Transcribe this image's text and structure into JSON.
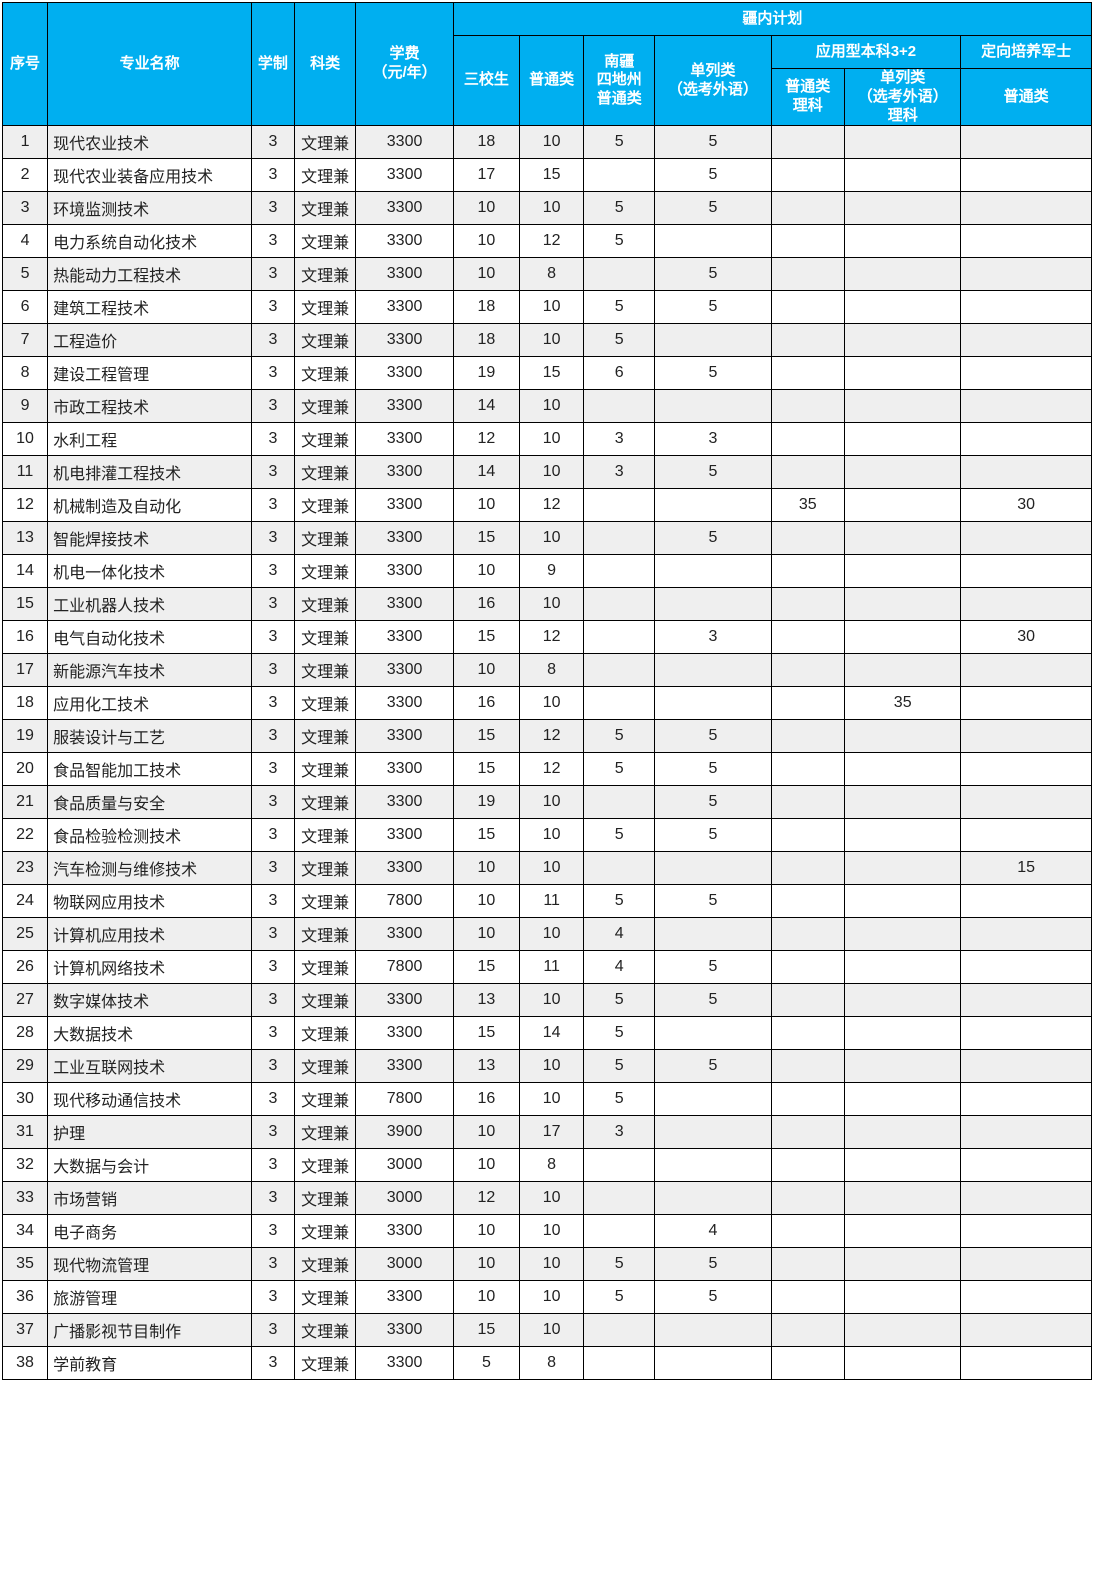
{
  "colors": {
    "header_bg": "#00aff0",
    "header_fg": "#ffffff",
    "row_odd_bg": "#efefef",
    "row_even_bg": "#ffffff",
    "border": "#000000"
  },
  "header": {
    "idx": "序号",
    "name": "专业名称",
    "dur": "学制",
    "cat": "科类",
    "fee_l1": "学费",
    "fee_l2": "（元/年）",
    "jn": "疆内计划",
    "a": "三校生",
    "b": "普通类",
    "c_l1": "南疆",
    "c_l2": "四地州",
    "c_l3": "普通类",
    "d_l1": "单列类",
    "d_l2": "（选考外语）",
    "ef": "应用型本科3+2",
    "e_l1": "普通类",
    "e_l2": "理科",
    "f_l1": "单列类",
    "f_l2": "（选考外语）",
    "f_l3": "理科",
    "g_top": "定向培养军士",
    "g": "普通类"
  },
  "rows": [
    {
      "idx": "1",
      "name": "现代农业技术",
      "dur": "3",
      "cat": "文理兼",
      "fee": "3300",
      "a": "18",
      "b": "10",
      "c": "5",
      "d": "5",
      "e": "",
      "f": "",
      "g": ""
    },
    {
      "idx": "2",
      "name": "现代农业装备应用技术",
      "dur": "3",
      "cat": "文理兼",
      "fee": "3300",
      "a": "17",
      "b": "15",
      "c": "",
      "d": "5",
      "e": "",
      "f": "",
      "g": ""
    },
    {
      "idx": "3",
      "name": "环境监测技术",
      "dur": "3",
      "cat": "文理兼",
      "fee": "3300",
      "a": "10",
      "b": "10",
      "c": "5",
      "d": "5",
      "e": "",
      "f": "",
      "g": ""
    },
    {
      "idx": "4",
      "name": "电力系统自动化技术",
      "dur": "3",
      "cat": "文理兼",
      "fee": "3300",
      "a": "10",
      "b": "12",
      "c": "5",
      "d": "",
      "e": "",
      "f": "",
      "g": ""
    },
    {
      "idx": "5",
      "name": "热能动力工程技术",
      "dur": "3",
      "cat": "文理兼",
      "fee": "3300",
      "a": "10",
      "b": "8",
      "c": "",
      "d": "5",
      "e": "",
      "f": "",
      "g": ""
    },
    {
      "idx": "6",
      "name": "建筑工程技术",
      "dur": "3",
      "cat": "文理兼",
      "fee": "3300",
      "a": "18",
      "b": "10",
      "c": "5",
      "d": "5",
      "e": "",
      "f": "",
      "g": ""
    },
    {
      "idx": "7",
      "name": "工程造价",
      "dur": "3",
      "cat": "文理兼",
      "fee": "3300",
      "a": "18",
      "b": "10",
      "c": "5",
      "d": "",
      "e": "",
      "f": "",
      "g": ""
    },
    {
      "idx": "8",
      "name": "建设工程管理",
      "dur": "3",
      "cat": "文理兼",
      "fee": "3300",
      "a": "19",
      "b": "15",
      "c": "6",
      "d": "5",
      "e": "",
      "f": "",
      "g": ""
    },
    {
      "idx": "9",
      "name": "市政工程技术",
      "dur": "3",
      "cat": "文理兼",
      "fee": "3300",
      "a": "14",
      "b": "10",
      "c": "",
      "d": "",
      "e": "",
      "f": "",
      "g": ""
    },
    {
      "idx": "10",
      "name": "水利工程",
      "dur": "3",
      "cat": "文理兼",
      "fee": "3300",
      "a": "12",
      "b": "10",
      "c": "3",
      "d": "3",
      "e": "",
      "f": "",
      "g": ""
    },
    {
      "idx": "11",
      "name": "机电排灌工程技术",
      "dur": "3",
      "cat": "文理兼",
      "fee": "3300",
      "a": "14",
      "b": "10",
      "c": "3",
      "d": "5",
      "e": "",
      "f": "",
      "g": ""
    },
    {
      "idx": "12",
      "name": "机械制造及自动化",
      "dur": "3",
      "cat": "文理兼",
      "fee": "3300",
      "a": "10",
      "b": "12",
      "c": "",
      "d": "",
      "e": "35",
      "f": "",
      "g": "30"
    },
    {
      "idx": "13",
      "name": "智能焊接技术",
      "dur": "3",
      "cat": "文理兼",
      "fee": "3300",
      "a": "15",
      "b": "10",
      "c": "",
      "d": "5",
      "e": "",
      "f": "",
      "g": ""
    },
    {
      "idx": "14",
      "name": "机电一体化技术",
      "dur": "3",
      "cat": "文理兼",
      "fee": "3300",
      "a": "10",
      "b": "9",
      "c": "",
      "d": "",
      "e": "",
      "f": "",
      "g": ""
    },
    {
      "idx": "15",
      "name": "工业机器人技术",
      "dur": "3",
      "cat": "文理兼",
      "fee": "3300",
      "a": "16",
      "b": "10",
      "c": "",
      "d": "",
      "e": "",
      "f": "",
      "g": ""
    },
    {
      "idx": "16",
      "name": "电气自动化技术",
      "dur": "3",
      "cat": "文理兼",
      "fee": "3300",
      "a": "15",
      "b": "12",
      "c": "",
      "d": "3",
      "e": "",
      "f": "",
      "g": "30"
    },
    {
      "idx": "17",
      "name": "新能源汽车技术",
      "dur": "3",
      "cat": "文理兼",
      "fee": "3300",
      "a": "10",
      "b": "8",
      "c": "",
      "d": "",
      "e": "",
      "f": "",
      "g": ""
    },
    {
      "idx": "18",
      "name": "应用化工技术",
      "dur": "3",
      "cat": "文理兼",
      "fee": "3300",
      "a": "16",
      "b": "10",
      "c": "",
      "d": "",
      "e": "",
      "f": "35",
      "g": ""
    },
    {
      "idx": "19",
      "name": "服装设计与工艺",
      "dur": "3",
      "cat": "文理兼",
      "fee": "3300",
      "a": "15",
      "b": "12",
      "c": "5",
      "d": "5",
      "e": "",
      "f": "",
      "g": ""
    },
    {
      "idx": "20",
      "name": "食品智能加工技术",
      "dur": "3",
      "cat": "文理兼",
      "fee": "3300",
      "a": "15",
      "b": "12",
      "c": "5",
      "d": "5",
      "e": "",
      "f": "",
      "g": ""
    },
    {
      "idx": "21",
      "name": "食品质量与安全",
      "dur": "3",
      "cat": "文理兼",
      "fee": "3300",
      "a": "19",
      "b": "10",
      "c": "",
      "d": "5",
      "e": "",
      "f": "",
      "g": ""
    },
    {
      "idx": "22",
      "name": "食品检验检测技术",
      "dur": "3",
      "cat": "文理兼",
      "fee": "3300",
      "a": "15",
      "b": "10",
      "c": "5",
      "d": "5",
      "e": "",
      "f": "",
      "g": ""
    },
    {
      "idx": "23",
      "name": "汽车检测与维修技术",
      "dur": "3",
      "cat": "文理兼",
      "fee": "3300",
      "a": "10",
      "b": "10",
      "c": "",
      "d": "",
      "e": "",
      "f": "",
      "g": "15"
    },
    {
      "idx": "24",
      "name": "物联网应用技术",
      "dur": "3",
      "cat": "文理兼",
      "fee": "7800",
      "a": "10",
      "b": "11",
      "c": "5",
      "d": "5",
      "e": "",
      "f": "",
      "g": ""
    },
    {
      "idx": "25",
      "name": "计算机应用技术",
      "dur": "3",
      "cat": "文理兼",
      "fee": "3300",
      "a": "10",
      "b": "10",
      "c": "4",
      "d": "",
      "e": "",
      "f": "",
      "g": ""
    },
    {
      "idx": "26",
      "name": "计算机网络技术",
      "dur": "3",
      "cat": "文理兼",
      "fee": "7800",
      "a": "15",
      "b": "11",
      "c": "4",
      "d": "5",
      "e": "",
      "f": "",
      "g": ""
    },
    {
      "idx": "27",
      "name": "数字媒体技术",
      "dur": "3",
      "cat": "文理兼",
      "fee": "3300",
      "a": "13",
      "b": "10",
      "c": "5",
      "d": "5",
      "e": "",
      "f": "",
      "g": ""
    },
    {
      "idx": "28",
      "name": "大数据技术",
      "dur": "3",
      "cat": "文理兼",
      "fee": "3300",
      "a": "15",
      "b": "14",
      "c": "5",
      "d": "",
      "e": "",
      "f": "",
      "g": ""
    },
    {
      "idx": "29",
      "name": "工业互联网技术",
      "dur": "3",
      "cat": "文理兼",
      "fee": "3300",
      "a": "13",
      "b": "10",
      "c": "5",
      "d": "5",
      "e": "",
      "f": "",
      "g": ""
    },
    {
      "idx": "30",
      "name": "现代移动通信技术",
      "dur": "3",
      "cat": "文理兼",
      "fee": "7800",
      "a": "16",
      "b": "10",
      "c": "5",
      "d": "",
      "e": "",
      "f": "",
      "g": ""
    },
    {
      "idx": "31",
      "name": "护理",
      "dur": "3",
      "cat": "文理兼",
      "fee": "3900",
      "a": "10",
      "b": "17",
      "c": "3",
      "d": "",
      "e": "",
      "f": "",
      "g": ""
    },
    {
      "idx": "32",
      "name": "大数据与会计",
      "dur": "3",
      "cat": "文理兼",
      "fee": "3000",
      "a": "10",
      "b": "8",
      "c": "",
      "d": "",
      "e": "",
      "f": "",
      "g": ""
    },
    {
      "idx": "33",
      "name": "市场营销",
      "dur": "3",
      "cat": "文理兼",
      "fee": "3000",
      "a": "12",
      "b": "10",
      "c": "",
      "d": "",
      "e": "",
      "f": "",
      "g": ""
    },
    {
      "idx": "34",
      "name": "电子商务",
      "dur": "3",
      "cat": "文理兼",
      "fee": "3300",
      "a": "10",
      "b": "10",
      "c": "",
      "d": "4",
      "e": "",
      "f": "",
      "g": ""
    },
    {
      "idx": "35",
      "name": "现代物流管理",
      "dur": "3",
      "cat": "文理兼",
      "fee": "3000",
      "a": "10",
      "b": "10",
      "c": "5",
      "d": "5",
      "e": "",
      "f": "",
      "g": ""
    },
    {
      "idx": "36",
      "name": "旅游管理",
      "dur": "3",
      "cat": "文理兼",
      "fee": "3300",
      "a": "10",
      "b": "10",
      "c": "5",
      "d": "5",
      "e": "",
      "f": "",
      "g": ""
    },
    {
      "idx": "37",
      "name": "广播影视节目制作",
      "dur": "3",
      "cat": "文理兼",
      "fee": "3300",
      "a": "15",
      "b": "10",
      "c": "",
      "d": "",
      "e": "",
      "f": "",
      "g": ""
    },
    {
      "idx": "38",
      "name": "学前教育",
      "dur": "3",
      "cat": "文理兼",
      "fee": "3300",
      "a": "5",
      "b": "8",
      "c": "",
      "d": "",
      "e": "",
      "f": "",
      "g": ""
    }
  ]
}
